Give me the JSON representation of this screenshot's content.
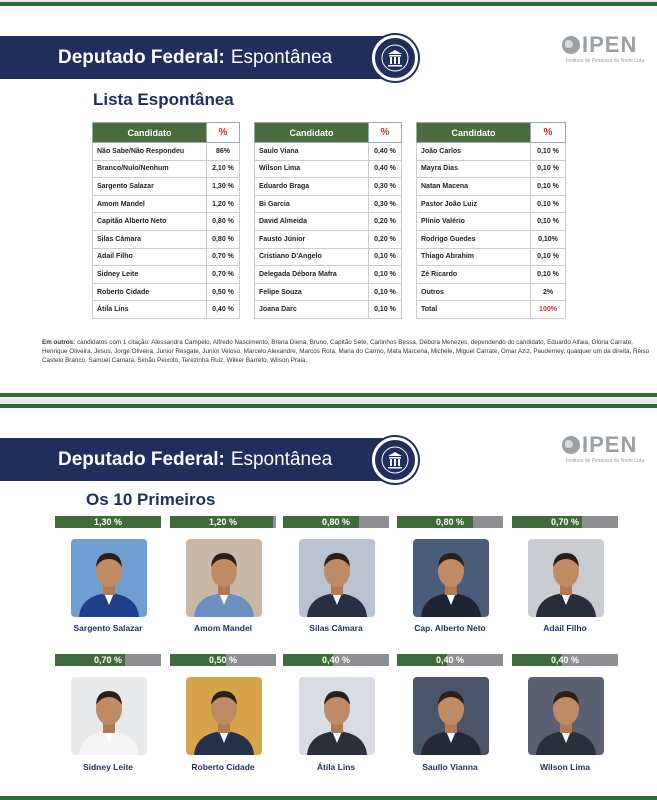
{
  "slide1": {
    "banner_bold": "Deputado Federal:",
    "banner_rest": "Espontânea",
    "logo": "IPEN",
    "logo_sub": "Instituto de Pesquisa do Norte Ltda",
    "section_title": "Lista Espontânea",
    "col_header_name": "Candidato",
    "col_header_pct": "%",
    "tables": [
      [
        {
          "name": "Não Sabe/Não Respondeu",
          "pct": "86%"
        },
        {
          "name": "Branco/Nulo/Nenhum",
          "pct": "2,10 %"
        },
        {
          "name": "Sargento Salazar",
          "pct": "1,30 %"
        },
        {
          "name": "Amom Mandel",
          "pct": "1,20 %"
        },
        {
          "name": "Capitão Alberto Neto",
          "pct": "0,80 %"
        },
        {
          "name": "Silas Câmara",
          "pct": "0,80 %"
        },
        {
          "name": "Adail Filho",
          "pct": "0,70 %"
        },
        {
          "name": "Sidney Leite",
          "pct": "0,70 %"
        },
        {
          "name": "Roberto Cidade",
          "pct": "0,50 %"
        },
        {
          "name": "Átila Lins",
          "pct": "0,40 %"
        }
      ],
      [
        {
          "name": "Saulo Viana",
          "pct": "0,40 %"
        },
        {
          "name": "Wilson Lima",
          "pct": "0,40 %"
        },
        {
          "name": "Eduardo Braga",
          "pct": "0,30 %"
        },
        {
          "name": "Bi Garcia",
          "pct": "0,30 %"
        },
        {
          "name": "David Almeida",
          "pct": "0,20 %"
        },
        {
          "name": "Fausto Júnior",
          "pct": "0,20 %"
        },
        {
          "name": "Cristiano D'Angelo",
          "pct": "0,10 %"
        },
        {
          "name": "Delegada Débora Mafra",
          "pct": "0,10 %"
        },
        {
          "name": "Felipe Souza",
          "pct": "0,10 %"
        },
        {
          "name": "Joana Darc",
          "pct": "0,10 %"
        }
      ],
      [
        {
          "name": "João Carlos",
          "pct": "0,10 %"
        },
        {
          "name": "Mayra Dias",
          "pct": "0,10 %"
        },
        {
          "name": "Natan Macena",
          "pct": "0,10 %"
        },
        {
          "name": "Pastor João Luiz",
          "pct": "0,10 %"
        },
        {
          "name": "Plínio Valério",
          "pct": "0,10 %"
        },
        {
          "name": "Rodrigo Guedes",
          "pct": "0,10%"
        },
        {
          "name": "Thiago Abrahim",
          "pct": "0,10 %"
        },
        {
          "name": "Zé Ricardo",
          "pct": "0,10 %"
        },
        {
          "name": "Outros",
          "pct": "2%"
        },
        {
          "name": "Total",
          "pct": "100%",
          "red": true
        }
      ]
    ],
    "outros_label": "Em outros:",
    "outros_text": "candidatos com 1 citação: Alessandra Campelo, Alfredo Nascimento, Brena Diena, Bruno, Capitão Sete, Carlinhos Bessa, Débora Menezes, dependendo do candidato, Eduardo Alfaia, Glória Carrate, Henrique Oliveira, Jesus, Jorge Oliveira, Junior Resgate, Junior Veloso, Marcelo Alexandre, Marcos Rota, Maria do Carmo, Mata Marcena, Michele, Miguel Carrate, Omar Aziz, Pauderney, qualquer um da direita, Reiso Castelo Branco, Samuel Camara, Simão Peixoto, Terezinha Ruiz, Wilker Barreto, Wilson Praia."
  },
  "slide2": {
    "banner_bold": "Deputado Federal:",
    "banner_rest": "Espontânea",
    "logo": "IPEN",
    "logo_sub": "Instituto de Pesquisa do Norte Ltda",
    "section_title": "Os 10 Primeiros",
    "cards": [
      {
        "pct": "1,30 %",
        "value": 1.3,
        "name": "Sargento Salazar"
      },
      {
        "pct": "1,20 %",
        "value": 1.2,
        "name": "Amom Mandel"
      },
      {
        "pct": "0,80 %",
        "value": 0.8,
        "name": "Silas Câmara"
      },
      {
        "pct": "0,80 %",
        "value": 0.8,
        "name": "Cap. Alberto Neto"
      },
      {
        "pct": "0,70 %",
        "value": 0.7,
        "name": "Adail Filho"
      },
      {
        "pct": "0,70 %",
        "value": 0.7,
        "name": "Sidney Leite"
      },
      {
        "pct": "0,50 %",
        "value": 0.5,
        "name": "Roberto Cidade"
      },
      {
        "pct": "0,40 %",
        "value": 0.4,
        "name": "Átila Lins"
      },
      {
        "pct": "0,40 %",
        "value": 0.4,
        "name": "Saullo Vianna"
      },
      {
        "pct": "0,40 %",
        "value": 0.4,
        "name": "Wilson Lima"
      }
    ]
  },
  "colors": {
    "navy": "#1f2e5b",
    "green": "#3f6b3a",
    "red": "#d32f2f",
    "grey": "#8d8f92"
  }
}
